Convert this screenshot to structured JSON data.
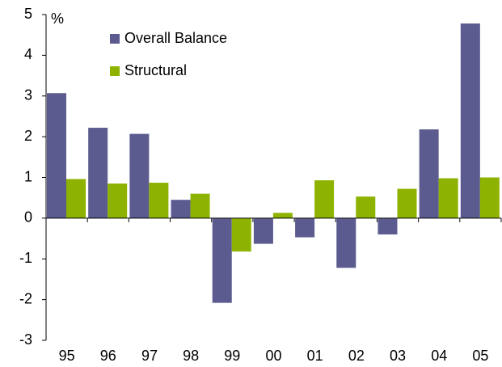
{
  "chart_data": {
    "type": "bar",
    "y_unit": "%",
    "categories": [
      "95",
      "96",
      "97",
      "98",
      "99",
      "00",
      "01",
      "02",
      "03",
      "04",
      "05"
    ],
    "series": [
      {
        "name": "Overall Balance",
        "color": "#5b5b8f",
        "values": [
          3.07,
          2.22,
          2.07,
          0.45,
          -2.08,
          -0.63,
          -0.47,
          -1.22,
          -0.4,
          2.18,
          4.78
        ]
      },
      {
        "name": "Structural",
        "color": "#8db300",
        "values": [
          0.96,
          0.85,
          0.87,
          0.6,
          -0.82,
          0.13,
          0.93,
          0.53,
          0.72,
          0.98,
          1.0
        ]
      }
    ],
    "ylim": [
      -3,
      5
    ],
    "yticks": [
      -3,
      -2,
      -1,
      0,
      1,
      2,
      3,
      4,
      5
    ],
    "legend": "top-left"
  }
}
